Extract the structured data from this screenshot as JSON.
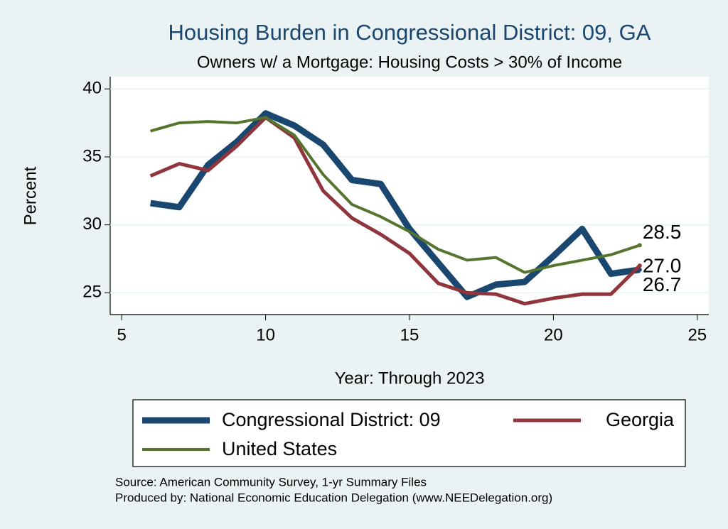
{
  "chart_data": {
    "type": "line",
    "title": "Housing Burden in Congressional District:  09, GA",
    "subtitle": "Owners w/ a Mortgage: Housing Costs > 30% of Income",
    "x_label": "Year: Through 2023",
    "y_label": "Percent",
    "x": [
      6,
      7,
      8,
      9,
      10,
      11,
      12,
      13,
      14,
      15,
      16,
      17,
      18,
      19,
      20,
      21,
      22,
      23
    ],
    "series": [
      {
        "name": "Congressional District:  09",
        "color": "#1a476f",
        "values": [
          31.6,
          31.3,
          34.4,
          36.1,
          38.2,
          37.3,
          35.9,
          33.3,
          33.0,
          29.7,
          27.2,
          24.7,
          25.6,
          25.8,
          27.7,
          29.7,
          26.4,
          26.7
        ],
        "value_labels": [
          null,
          null,
          null,
          null,
          null,
          null,
          null,
          null,
          null,
          null,
          null,
          null,
          null,
          null,
          null,
          null,
          null,
          "26.7"
        ]
      },
      {
        "name": "Georgia",
        "color": "#90353b",
        "values": [
          33.6,
          34.5,
          34.0,
          35.8,
          37.9,
          36.4,
          32.5,
          30.5,
          29.3,
          27.9,
          25.7,
          25.0,
          24.9,
          24.2,
          24.6,
          24.9,
          24.9,
          27.0
        ],
        "value_labels": [
          null,
          null,
          null,
          null,
          null,
          null,
          null,
          null,
          null,
          null,
          null,
          null,
          null,
          null,
          null,
          null,
          null,
          "27.0"
        ]
      },
      {
        "name": "United States",
        "color": "#55752f",
        "values": [
          36.9,
          37.5,
          37.6,
          37.5,
          37.9,
          36.6,
          33.7,
          31.5,
          30.6,
          29.5,
          28.2,
          27.4,
          27.6,
          26.5,
          27.0,
          27.4,
          27.8,
          28.5
        ],
        "value_labels": [
          null,
          null,
          null,
          null,
          null,
          null,
          null,
          null,
          null,
          null,
          null,
          null,
          null,
          null,
          null,
          null,
          null,
          "28.5"
        ]
      }
    ],
    "xlim": [
      4.6,
      25.4
    ],
    "ylim": [
      23.4,
      40.9
    ],
    "xticks": [
      5,
      10,
      15,
      20,
      25
    ],
    "yticks": [
      25,
      30,
      35,
      40
    ],
    "grid": true,
    "notes": [
      "Source: American Community Survey, 1-yr Summary Files",
      "Produced by: National Economic Education Delegation (www.NEEDelegation.org)"
    ]
  }
}
